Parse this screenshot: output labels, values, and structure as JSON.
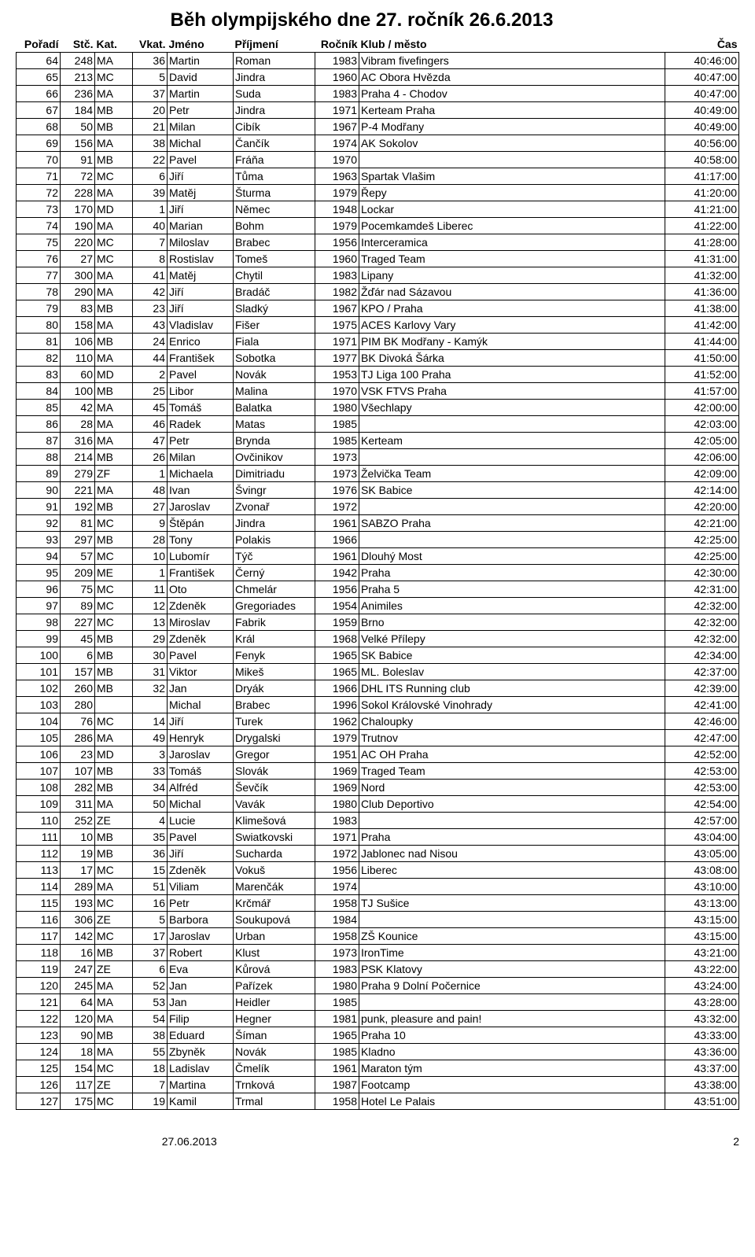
{
  "title": "Běh olympijského dne 27. ročník 26.6.2013",
  "headers": {
    "poradi": "Pořadí",
    "stc": "Stč.",
    "kat": "Kat.",
    "vkat": "Vkat.",
    "jmeno": "Jméno",
    "prijmeni": "Příjmení",
    "rocnik": "Ročník",
    "klub": "Klub / město",
    "cas": "Čas"
  },
  "rows": [
    [
      "64",
      "248",
      "MA",
      "36",
      "Martin",
      "Roman",
      "1983",
      "Vibram fivefingers",
      "40:46:00"
    ],
    [
      "65",
      "213",
      "MC",
      "5",
      "David",
      "Jindra",
      "1960",
      "AC Obora Hvězda",
      "40:47:00"
    ],
    [
      "66",
      "236",
      "MA",
      "37",
      "Martin",
      "Suda",
      "1983",
      "Praha 4 - Chodov",
      "40:47:00"
    ],
    [
      "67",
      "184",
      "MB",
      "20",
      "Petr",
      "Jindra",
      "1971",
      "Kerteam Praha",
      "40:49:00"
    ],
    [
      "68",
      "50",
      "MB",
      "21",
      "Milan",
      "Cibík",
      "1967",
      "P-4 Modřany",
      "40:49:00"
    ],
    [
      "69",
      "156",
      "MA",
      "38",
      "Michal",
      "Čančík",
      "1974",
      "AK Sokolov",
      "40:56:00"
    ],
    [
      "70",
      "91",
      "MB",
      "22",
      "Pavel",
      "Fráňa",
      "1970",
      "",
      "40:58:00"
    ],
    [
      "71",
      "72",
      "MC",
      "6",
      "Jiří",
      "Tůma",
      "1963",
      "Spartak Vlašim",
      "41:17:00"
    ],
    [
      "72",
      "228",
      "MA",
      "39",
      "Matěj",
      "Šturma",
      "1979",
      "Řepy",
      "41:20:00"
    ],
    [
      "73",
      "170",
      "MD",
      "1",
      "Jiří",
      "Němec",
      "1948",
      "Lockar",
      "41:21:00"
    ],
    [
      "74",
      "190",
      "MA",
      "40",
      "Marian",
      "Bohm",
      "1979",
      "Pocemkamdeš Liberec",
      "41:22:00"
    ],
    [
      "75",
      "220",
      "MC",
      "7",
      "Miloslav",
      "Brabec",
      "1956",
      "Interceramica",
      "41:28:00"
    ],
    [
      "76",
      "27",
      "MC",
      "8",
      "Rostislav",
      "Tomeš",
      "1960",
      "Traged Team",
      "41:31:00"
    ],
    [
      "77",
      "300",
      "MA",
      "41",
      "Matěj",
      "Chytil",
      "1983",
      "Lipany",
      "41:32:00"
    ],
    [
      "78",
      "290",
      "MA",
      "42",
      "Jiří",
      "Bradáč",
      "1982",
      "Žďár nad Sázavou",
      "41:36:00"
    ],
    [
      "79",
      "83",
      "MB",
      "23",
      "Jiří",
      "Sladký",
      "1967",
      "KPO / Praha",
      "41:38:00"
    ],
    [
      "80",
      "158",
      "MA",
      "43",
      "Vladislav",
      "Fišer",
      "1975",
      "ACES Karlovy Vary",
      "41:42:00"
    ],
    [
      "81",
      "106",
      "MB",
      "24",
      "Enrico",
      "Fiala",
      "1971",
      "PIM BK Modřany - Kamýk",
      "41:44:00"
    ],
    [
      "82",
      "110",
      "MA",
      "44",
      "František",
      "Sobotka",
      "1977",
      "BK Divoká Šárka",
      "41:50:00"
    ],
    [
      "83",
      "60",
      "MD",
      "2",
      "Pavel",
      "Novák",
      "1953",
      "TJ Liga 100 Praha",
      "41:52:00"
    ],
    [
      "84",
      "100",
      "MB",
      "25",
      "Libor",
      "Malina",
      "1970",
      "VSK FTVS Praha",
      "41:57:00"
    ],
    [
      "85",
      "42",
      "MA",
      "45",
      "Tomáš",
      "Balatka",
      "1980",
      "Všechlapy",
      "42:00:00"
    ],
    [
      "86",
      "28",
      "MA",
      "46",
      "Radek",
      "Matas",
      "1985",
      "",
      "42:03:00"
    ],
    [
      "87",
      "316",
      "MA",
      "47",
      "Petr",
      "Brynda",
      "1985",
      "Kerteam",
      "42:05:00"
    ],
    [
      "88",
      "214",
      "MB",
      "26",
      "Milan",
      "Ovčinikov",
      "1973",
      "",
      "42:06:00"
    ],
    [
      "89",
      "279",
      "ZF",
      "1",
      "Michaela",
      "Dimitriadu",
      "1973",
      "Želvička Team",
      "42:09:00"
    ],
    [
      "90",
      "221",
      "MA",
      "48",
      "Ivan",
      "Švingr",
      "1976",
      "SK Babice",
      "42:14:00"
    ],
    [
      "91",
      "192",
      "MB",
      "27",
      "Jaroslav",
      "Zvonař",
      "1972",
      "",
      "42:20:00"
    ],
    [
      "92",
      "81",
      "MC",
      "9",
      "Štěpán",
      "Jindra",
      "1961",
      "SABZO Praha",
      "42:21:00"
    ],
    [
      "93",
      "297",
      "MB",
      "28",
      "Tony",
      "Polakis",
      "1966",
      "",
      "42:25:00"
    ],
    [
      "94",
      "57",
      "MC",
      "10",
      "Lubomír",
      "Týč",
      "1961",
      "Dlouhý Most",
      "42:25:00"
    ],
    [
      "95",
      "209",
      "ME",
      "1",
      "František",
      "Černý",
      "1942",
      "Praha",
      "42:30:00"
    ],
    [
      "96",
      "75",
      "MC",
      "11",
      "Oto",
      "Chmelár",
      "1956",
      "Praha 5",
      "42:31:00"
    ],
    [
      "97",
      "89",
      "MC",
      "12",
      "Zdeněk",
      "Gregoriades",
      "1954",
      "Animiles",
      "42:32:00"
    ],
    [
      "98",
      "227",
      "MC",
      "13",
      "Miroslav",
      "Fabrik",
      "1959",
      "Brno",
      "42:32:00"
    ],
    [
      "99",
      "45",
      "MB",
      "29",
      "Zdeněk",
      "Král",
      "1968",
      "Velké Přílepy",
      "42:32:00"
    ],
    [
      "100",
      "6",
      "MB",
      "30",
      "Pavel",
      "Fenyk",
      "1965",
      "SK Babice",
      "42:34:00"
    ],
    [
      "101",
      "157",
      "MB",
      "31",
      "Viktor",
      "Mikeš",
      "1965",
      "ML. Boleslav",
      "42:37:00"
    ],
    [
      "102",
      "260",
      "MB",
      "32",
      "Jan",
      "Dryák",
      "1966",
      "DHL ITS Running club",
      "42:39:00"
    ],
    [
      "103",
      "280",
      "",
      "",
      "Michal",
      "Brabec",
      "1996",
      "Sokol Královské Vinohrady",
      "42:41:00"
    ],
    [
      "104",
      "76",
      "MC",
      "14",
      "Jiří",
      "Turek",
      "1962",
      "Chaloupky",
      "42:46:00"
    ],
    [
      "105",
      "286",
      "MA",
      "49",
      "Henryk",
      "Drygalski",
      "1979",
      "Trutnov",
      "42:47:00"
    ],
    [
      "106",
      "23",
      "MD",
      "3",
      "Jaroslav",
      "Gregor",
      "1951",
      "AC OH Praha",
      "42:52:00"
    ],
    [
      "107",
      "107",
      "MB",
      "33",
      "Tomáš",
      "Slovák",
      "1969",
      "Traged Team",
      "42:53:00"
    ],
    [
      "108",
      "282",
      "MB",
      "34",
      "Alfréd",
      "Ševčík",
      "1969",
      "Nord",
      "42:53:00"
    ],
    [
      "109",
      "311",
      "MA",
      "50",
      "Michal",
      "Vavák",
      "1980",
      "Club Deportivo",
      "42:54:00"
    ],
    [
      "110",
      "252",
      "ZE",
      "4",
      "Lucie",
      "Klimešová",
      "1983",
      "",
      "42:57:00"
    ],
    [
      "111",
      "10",
      "MB",
      "35",
      "Pavel",
      "Swiatkovski",
      "1971",
      "Praha",
      "43:04:00"
    ],
    [
      "112",
      "19",
      "MB",
      "36",
      "Jiří",
      "Sucharda",
      "1972",
      "Jablonec nad Nisou",
      "43:05:00"
    ],
    [
      "113",
      "17",
      "MC",
      "15",
      "Zdeněk",
      "Vokuš",
      "1956",
      "Liberec",
      "43:08:00"
    ],
    [
      "114",
      "289",
      "MA",
      "51",
      "Viliam",
      "Marenčák",
      "1974",
      "",
      "43:10:00"
    ],
    [
      "115",
      "193",
      "MC",
      "16",
      "Petr",
      "Krčmář",
      "1958",
      "TJ Sušice",
      "43:13:00"
    ],
    [
      "116",
      "306",
      "ZE",
      "5",
      "Barbora",
      "Soukupová",
      "1984",
      "",
      "43:15:00"
    ],
    [
      "117",
      "142",
      "MC",
      "17",
      "Jaroslav",
      "Urban",
      "1958",
      "ZŠ Kounice",
      "43:15:00"
    ],
    [
      "118",
      "16",
      "MB",
      "37",
      "Robert",
      "Klust",
      "1973",
      "IronTime",
      "43:21:00"
    ],
    [
      "119",
      "247",
      "ZE",
      "6",
      "Eva",
      "Kůrová",
      "1983",
      "PSK Klatovy",
      "43:22:00"
    ],
    [
      "120",
      "245",
      "MA",
      "52",
      "Jan",
      "Pařízek",
      "1980",
      "Praha 9 Dolní Počernice",
      "43:24:00"
    ],
    [
      "121",
      "64",
      "MA",
      "53",
      "Jan",
      "Heidler",
      "1985",
      "",
      "43:28:00"
    ],
    [
      "122",
      "120",
      "MA",
      "54",
      "Filip",
      "Hegner",
      "1981",
      "punk, pleasure and pain!",
      "43:32:00"
    ],
    [
      "123",
      "90",
      "MB",
      "38",
      "Eduard",
      "Šíman",
      "1965",
      "Praha 10",
      "43:33:00"
    ],
    [
      "124",
      "18",
      "MA",
      "55",
      "Zbyněk",
      "Novák",
      "1985",
      "Kladno",
      "43:36:00"
    ],
    [
      "125",
      "154",
      "MC",
      "18",
      "Ladislav",
      "Čmelík",
      "1961",
      "Maraton tým",
      "43:37:00"
    ],
    [
      "126",
      "117",
      "ZE",
      "7",
      "Martina",
      "Trnková",
      "1987",
      "Footcamp",
      "43:38:00"
    ],
    [
      "127",
      "175",
      "MC",
      "19",
      "Kamil",
      "Trmal",
      "1958",
      "Hotel Le Palais",
      "43:51:00"
    ]
  ],
  "footer": {
    "date": "27.06.2013",
    "page": "2"
  }
}
